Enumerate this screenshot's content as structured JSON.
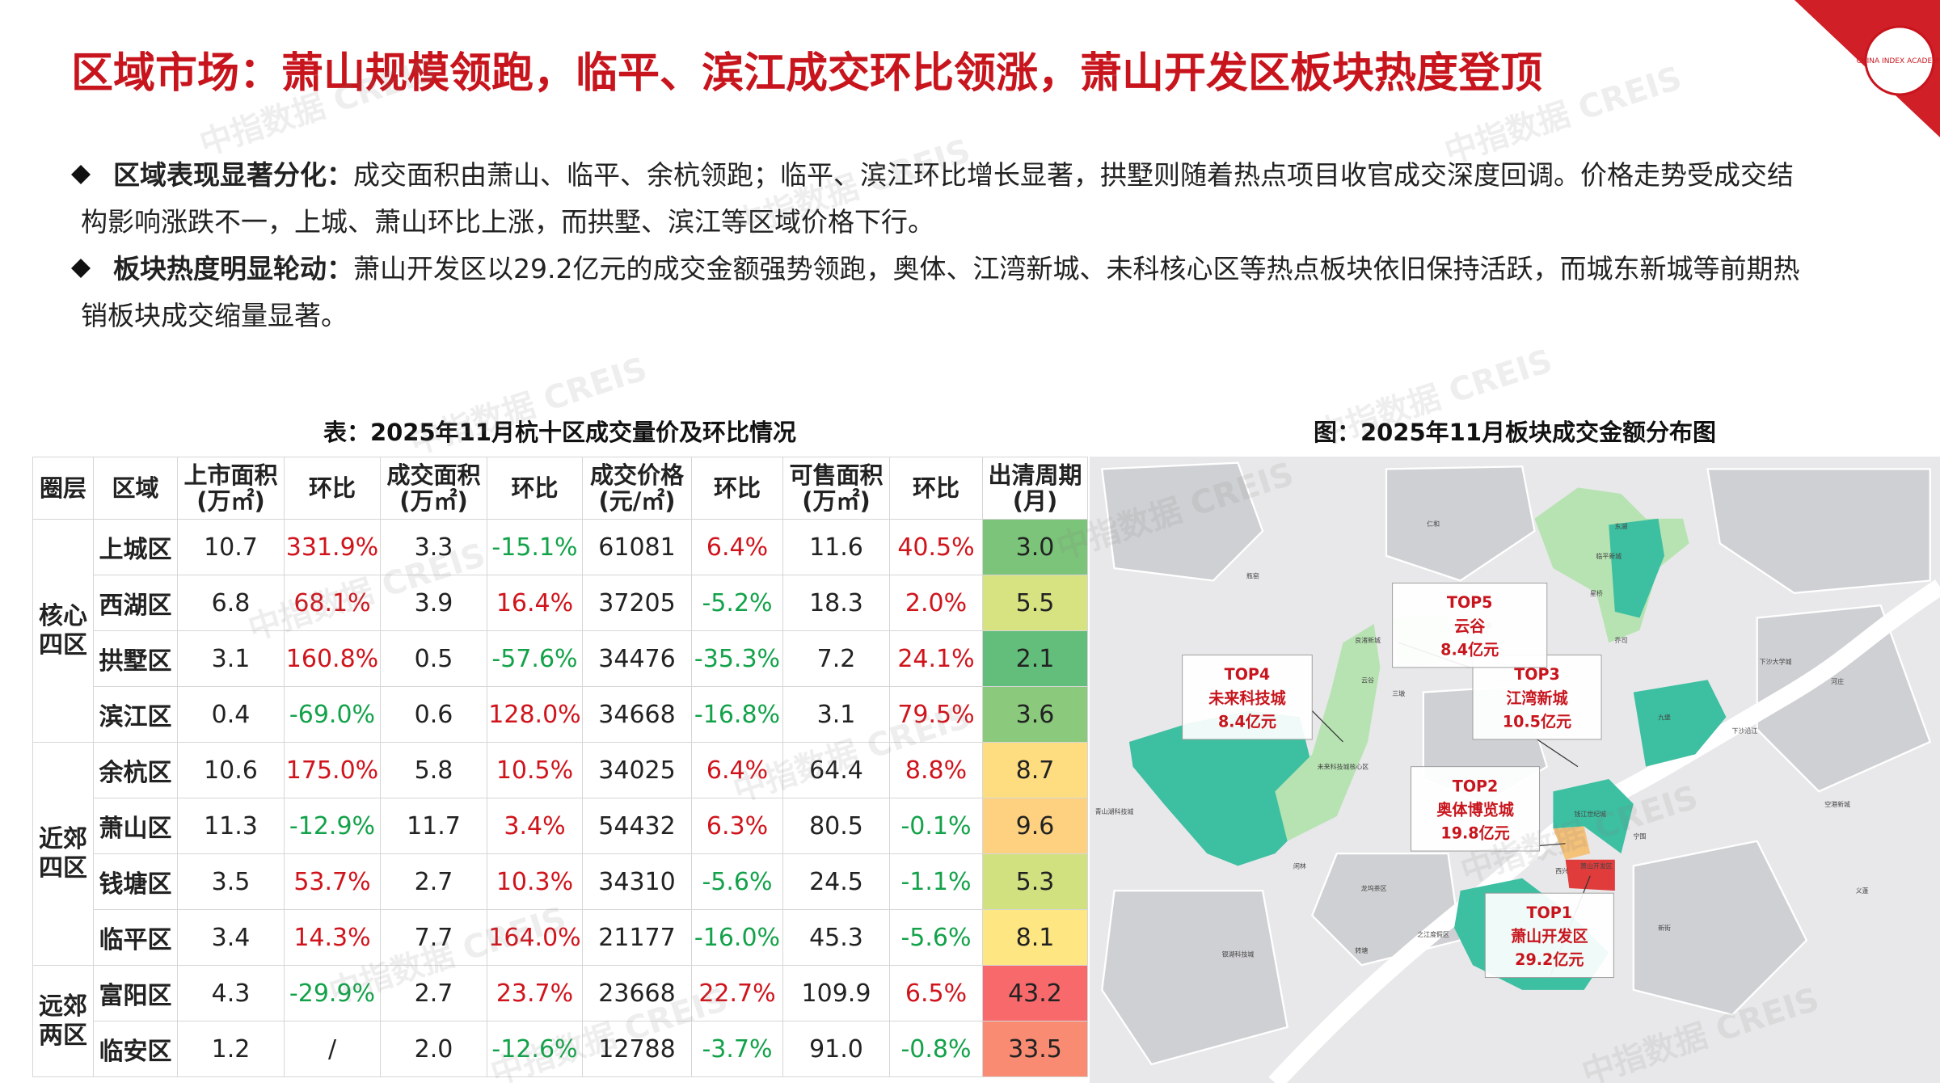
{
  "header": {
    "title": "区域市场：萧山规模领跑，临平、滨江成交环比领涨，萧山开发区板块热度登顶",
    "logo_text": "CHINA INDEX ACADEMY",
    "watermark": "中指数据 CREIS"
  },
  "bullets": [
    {
      "heading": "区域表现显著分化：",
      "text": "成交面积由萧山、临平、余杭领跑；临平、滨江环比增长显著，拱墅则随着热点项目收官成交深度回调。价格走势受成交结构影响涨跌不一，上城、萧山环比上涨，而拱墅、滨江等区域价格下行。"
    },
    {
      "heading": "板块热度明显轮动：",
      "text": "萧山开发区以29.2亿元的成交金额强势领跑，奥体、江湾新城、未科核心区等热点板块依旧保持活跃，而城东新城等前期热销板块成交缩量显著。"
    }
  ],
  "table": {
    "title": "表：2025年11月杭十区成交量价及环比情况",
    "header": [
      "圈层",
      "区域",
      "上市面积\n(万㎡)",
      "环比",
      "成交面积\n(万㎡)",
      "环比",
      "成交价格\n(元/㎡)",
      "环比",
      "可售面积\n(万㎡)",
      "环比",
      "出清周期\n(月)"
    ],
    "groups": [
      {
        "name": "核心\n四区",
        "rows": [
          {
            "cells": [
              "上城区",
              "10.7",
              "331.9%",
              "3.3",
              "-15.1%",
              "61081",
              "6.4%",
              "11.6",
              "40.5%",
              "3.0"
            ],
            "cycle_color": "#7cc47a"
          },
          {
            "cells": [
              "西湖区",
              "6.8",
              "68.1%",
              "3.9",
              "16.4%",
              "37205",
              "-5.2%",
              "18.3",
              "2.0%",
              "5.5"
            ],
            "cycle_color": "#d7e281"
          },
          {
            "cells": [
              "拱墅区",
              "3.1",
              "160.8%",
              "0.5",
              "-57.6%",
              "34476",
              "-35.3%",
              "7.2",
              "24.1%",
              "2.1"
            ],
            "cycle_color": "#63be7b"
          },
          {
            "cells": [
              "滨江区",
              "0.4",
              "-69.0%",
              "0.6",
              "128.0%",
              "34668",
              "-16.8%",
              "3.1",
              "79.5%",
              "3.6"
            ],
            "cycle_color": "#8bc97d"
          }
        ]
      },
      {
        "name": "近郊\n四区",
        "rows": [
          {
            "cells": [
              "余杭区",
              "10.6",
              "175.0%",
              "5.8",
              "10.5%",
              "34025",
              "6.4%",
              "64.4",
              "8.8%",
              "8.7"
            ],
            "cycle_color": "#fedd81"
          },
          {
            "cells": [
              "萧山区",
              "11.3",
              "-12.9%",
              "11.7",
              "3.4%",
              "54432",
              "6.3%",
              "80.5",
              "-0.1%",
              "9.6"
            ],
            "cycle_color": "#fdd17f"
          },
          {
            "cells": [
              "钱塘区",
              "3.5",
              "53.7%",
              "2.7",
              "10.3%",
              "34310",
              "-5.6%",
              "24.5",
              "-1.1%",
              "5.3"
            ],
            "cycle_color": "#d2e180"
          },
          {
            "cells": [
              "临平区",
              "3.4",
              "14.3%",
              "7.7",
              "164.0%",
              "21177",
              "-16.0%",
              "45.3",
              "-5.6%",
              "8.1"
            ],
            "cycle_color": "#fee683"
          }
        ]
      },
      {
        "name": "远郊\n两区",
        "rows": [
          {
            "cells": [
              "富阳区",
              "4.3",
              "-29.9%",
              "2.7",
              "23.7%",
              "23668",
              "22.7%",
              "109.9",
              "6.5%",
              "43.2"
            ],
            "cycle_color": "#f8696b"
          },
          {
            "cells": [
              "临安区",
              "1.2",
              "/",
              "2.0",
              "-12.6%",
              "12788",
              "-3.7%",
              "91.0",
              "-0.8%",
              "33.5"
            ],
            "cycle_color": "#f98b73"
          }
        ]
      }
    ]
  },
  "map": {
    "title": "图：2025年11月板块成交金额分布图",
    "callouts": [
      {
        "rank": "TOP1",
        "name": "萧山开发区",
        "amount": "29.2亿元"
      },
      {
        "rank": "TOP2",
        "name": "奥体博览城",
        "amount": "19.8亿元"
      },
      {
        "rank": "TOP3",
        "name": "江湾新城",
        "amount": "10.5亿元"
      },
      {
        "rank": "TOP4",
        "name": "未来科技城",
        "amount": "8.4亿元"
      },
      {
        "rank": "TOP5",
        "name": "云谷",
        "amount": "8.4亿元"
      }
    ],
    "places": [
      "临平新城",
      "东湖",
      "仁和",
      "瓶窑",
      "良渚新城",
      "云谷",
      "三墩",
      "未来科技城核心区",
      "青山湖科技城",
      "闲林",
      "钱江世纪城",
      "萧山开发区",
      "之江度假区",
      "银湖科技城",
      "转塘",
      "新街",
      "下沙沿江",
      "宁围",
      "河庄",
      "空港新城",
      "下沙大学城",
      "乔司",
      "星桥",
      "崇贤",
      "九堡",
      "西兴",
      "龙坞茶区",
      "义蓬"
    ]
  }
}
